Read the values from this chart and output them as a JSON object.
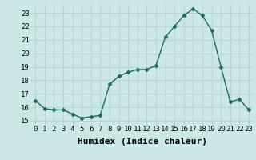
{
  "x": [
    0,
    1,
    2,
    3,
    4,
    5,
    6,
    7,
    8,
    9,
    10,
    11,
    12,
    13,
    14,
    15,
    16,
    17,
    18,
    19,
    20,
    21,
    22,
    23
  ],
  "y": [
    16.5,
    15.9,
    15.8,
    15.8,
    15.5,
    15.2,
    15.3,
    15.4,
    17.7,
    18.3,
    18.6,
    18.8,
    18.8,
    19.1,
    21.2,
    22.0,
    22.8,
    23.3,
    22.8,
    21.7,
    19.0,
    16.4,
    16.6,
    15.8
  ],
  "line_color": "#1a6b5a",
  "marker": "D",
  "marker_size": 2.5,
  "bg_color": "#cce8e6",
  "grid_color": "#b8d4d2",
  "xlabel": "Humidex (Indice chaleur)",
  "xlabel_fontsize": 8,
  "ylabel_ticks": [
    15,
    16,
    17,
    18,
    19,
    20,
    21,
    22,
    23
  ],
  "xlim": [
    -0.5,
    23.5
  ],
  "ylim": [
    14.7,
    23.6
  ],
  "xtick_labels": [
    "0",
    "1",
    "2",
    "3",
    "4",
    "5",
    "6",
    "7",
    "8",
    "9",
    "10",
    "11",
    "12",
    "13",
    "14",
    "15",
    "16",
    "17",
    "18",
    "19",
    "20",
    "21",
    "22",
    "23"
  ],
  "tick_fontsize": 6.5,
  "line_width": 1.0
}
